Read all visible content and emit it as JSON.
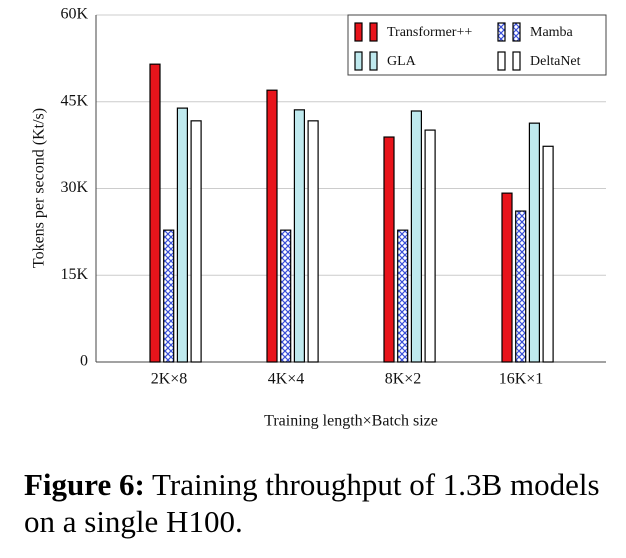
{
  "chart_data": {
    "type": "bar",
    "ylabel": "Tokens per second (Kt/s)",
    "xlabel": "Training length×Batch size",
    "categories": [
      "2K×8",
      "4K×4",
      "8K×2",
      "16K×1"
    ],
    "series": [
      {
        "name": "Transformer++",
        "color": "#e8141b",
        "values": [
          51500,
          47000,
          38900,
          29200
        ]
      },
      {
        "name": "Mamba",
        "color": "#3a4fd8",
        "pattern": "crosshatch",
        "values": [
          22800,
          22800,
          22800,
          26100
        ]
      },
      {
        "name": "GLA",
        "color": "#bfe9ee",
        "values": [
          43900,
          43600,
          43400,
          41300
        ]
      },
      {
        "name": "DeltaNet",
        "color": "#ffffff",
        "values": [
          41700,
          41700,
          40100,
          37300
        ]
      }
    ],
    "ylim": [
      0,
      60000
    ],
    "yticks": [
      0,
      {
        "value": 15000,
        "label": "15K"
      },
      {
        "value": 30000,
        "label": "30K"
      },
      {
        "value": 45000,
        "label": "45K"
      },
      {
        "value": 60000,
        "label": "60K"
      }
    ],
    "grid": true,
    "legend": "top-right"
  },
  "caption": {
    "label": "Figure 6:",
    "text": "Training throughput of 1.3B models on a single H100."
  }
}
